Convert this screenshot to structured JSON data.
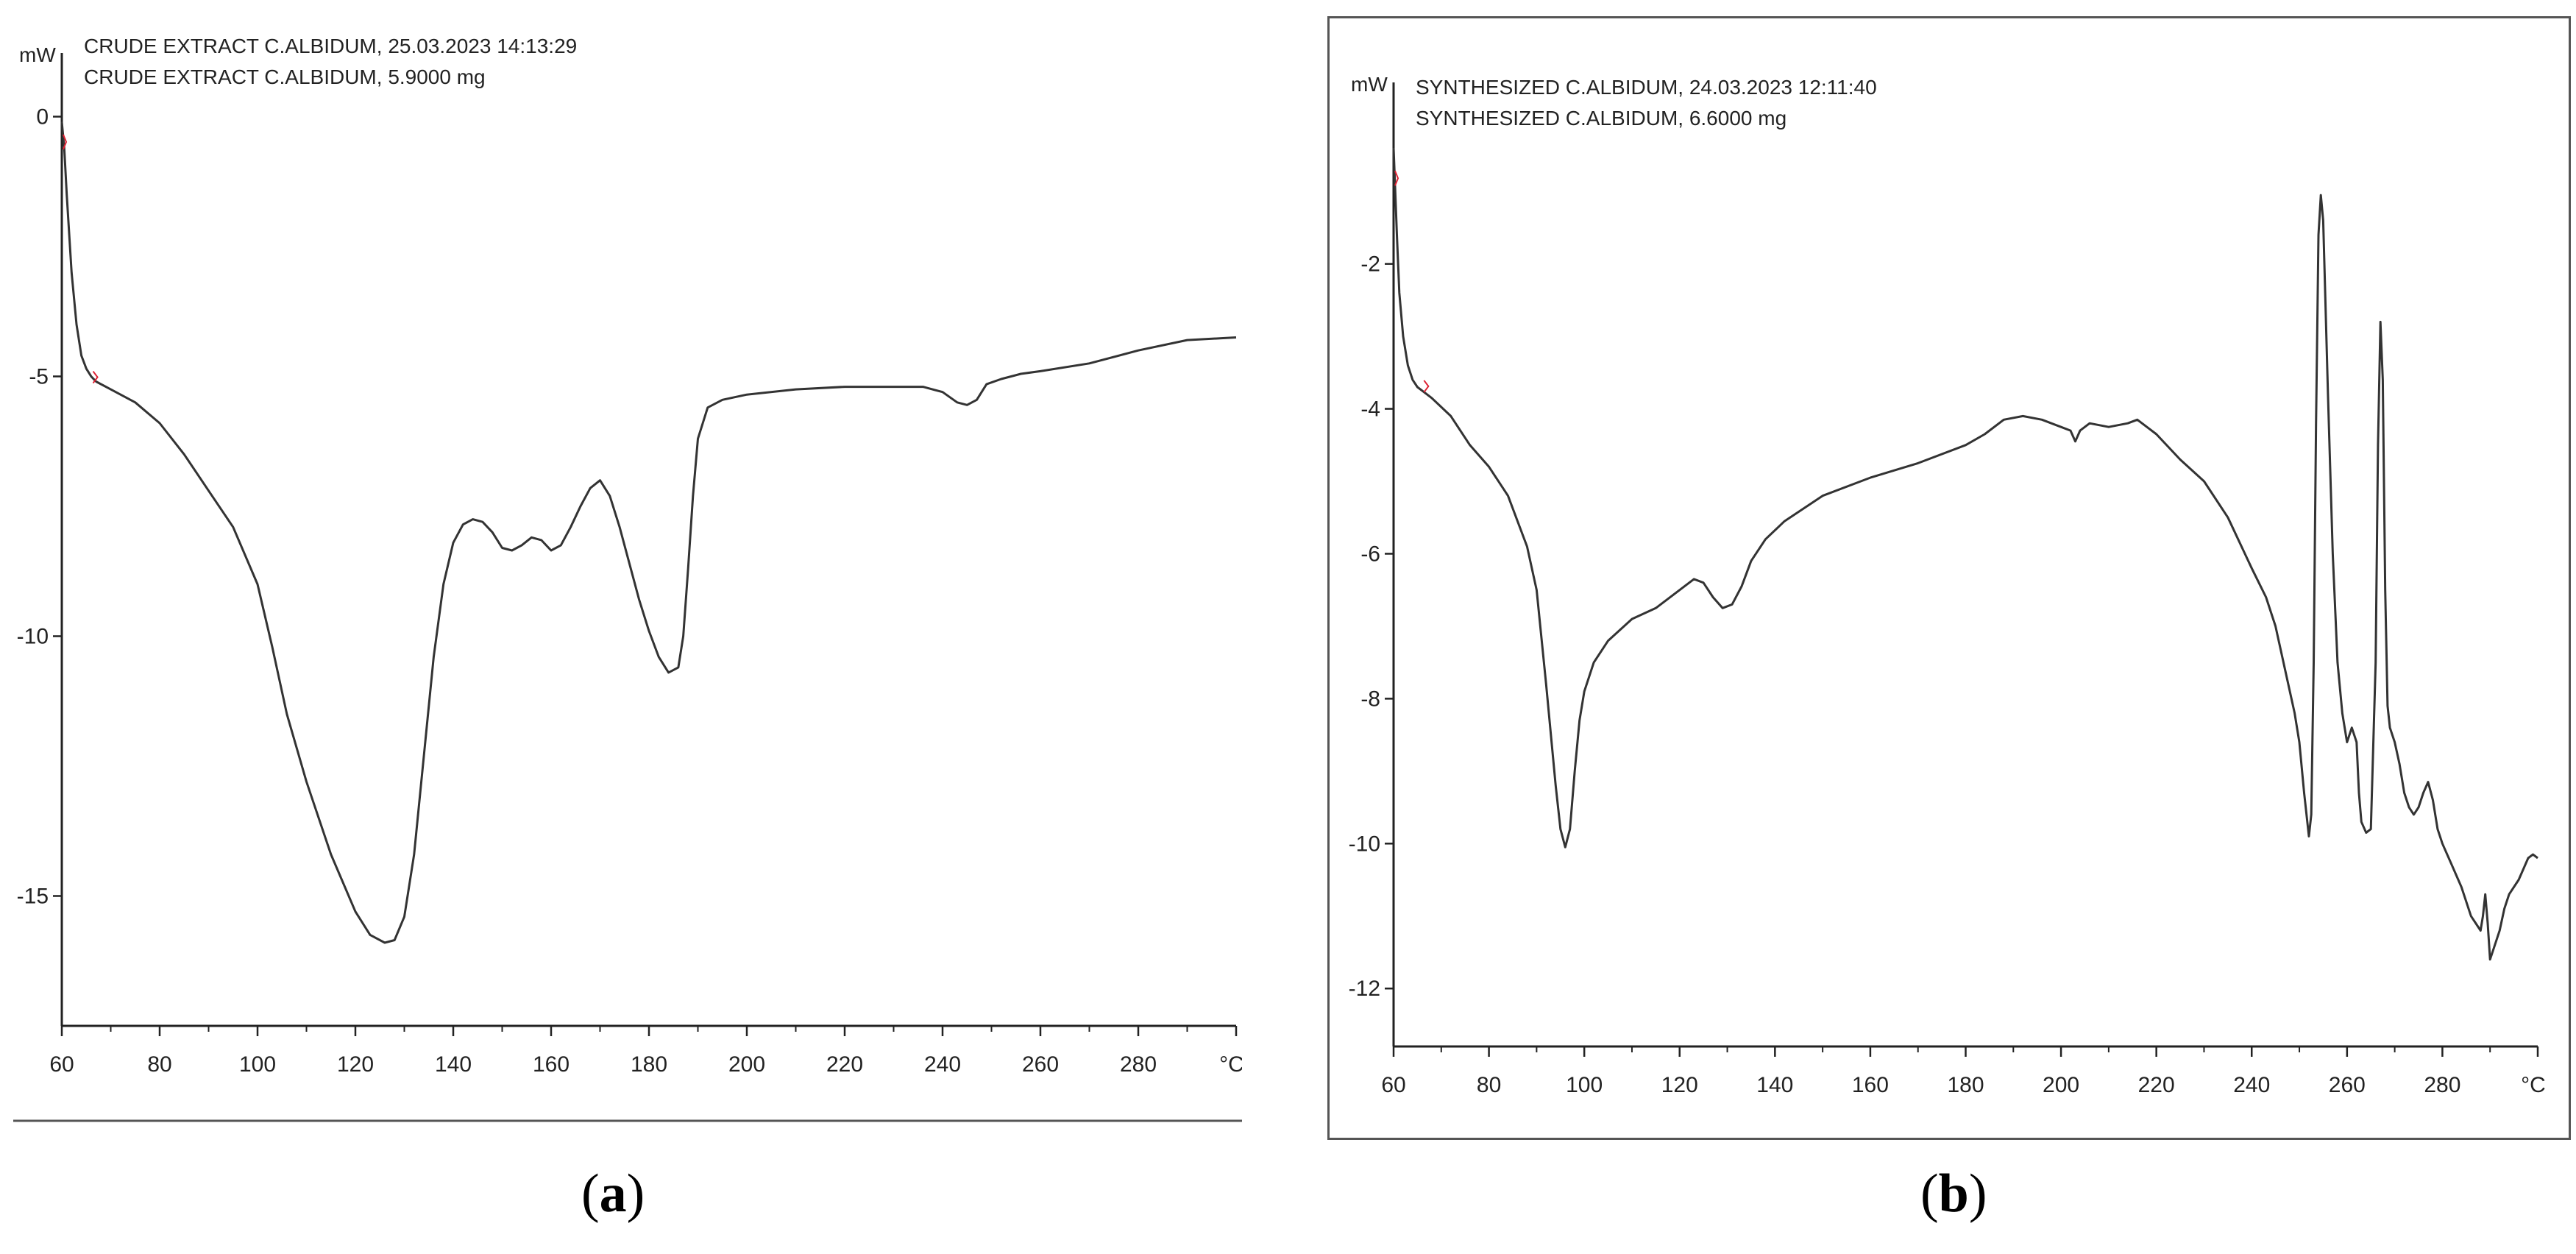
{
  "chart_data": [
    {
      "type": "line",
      "caption_letter": "a",
      "unit_y": "mW",
      "unit_x": "°C",
      "header_lines": [
        "CRUDE EXTRACT C.ALBIDUM, 25.03.2023 14:13:29",
        "CRUDE EXTRACT C.ALBIDUM, 5.9000 mg"
      ],
      "xlim": [
        60,
        300
      ],
      "ylim": [
        -17.5,
        0.8
      ],
      "x_ticks": [
        60,
        80,
        100,
        120,
        140,
        160,
        180,
        200,
        220,
        240,
        260,
        280
      ],
      "y_ticks": [
        0,
        -5,
        -10,
        -15
      ],
      "series": [
        {
          "color": "#333333",
          "x": [
            60,
            60.5,
            61,
            62,
            63,
            64,
            65,
            66,
            67,
            70,
            75,
            80,
            85,
            90,
            95,
            100,
            103,
            106,
            110,
            115,
            120,
            123,
            126,
            128,
            130,
            132,
            134,
            136,
            138,
            140,
            142,
            144,
            146,
            148,
            150,
            152,
            154,
            156,
            158,
            160,
            162,
            164,
            166,
            168,
            170,
            172,
            174,
            176,
            178,
            180,
            182,
            184,
            186,
            187,
            188,
            189,
            190,
            192,
            195,
            200,
            210,
            220,
            230,
            236,
            240,
            243,
            245,
            247,
            249,
            252,
            256,
            260,
            270,
            280,
            290,
            300
          ],
          "y": [
            -0.1,
            -0.6,
            -1.5,
            -3.0,
            -4.0,
            -4.6,
            -4.85,
            -5.0,
            -5.1,
            -5.25,
            -5.5,
            -5.9,
            -6.5,
            -7.2,
            -7.9,
            -9.0,
            -10.2,
            -11.5,
            -12.8,
            -14.2,
            -15.3,
            -15.75,
            -15.9,
            -15.85,
            -15.4,
            -14.2,
            -12.3,
            -10.4,
            -9.0,
            -8.2,
            -7.85,
            -7.75,
            -7.8,
            -8.0,
            -8.3,
            -8.35,
            -8.25,
            -8.1,
            -8.15,
            -8.35,
            -8.25,
            -7.9,
            -7.5,
            -7.15,
            -7.0,
            -7.3,
            -7.9,
            -8.6,
            -9.3,
            -9.9,
            -10.4,
            -10.7,
            -10.6,
            -10.0,
            -8.7,
            -7.3,
            -6.2,
            -5.6,
            -5.45,
            -5.35,
            -5.25,
            -5.2,
            -5.2,
            -5.2,
            -5.3,
            -5.5,
            -5.55,
            -5.45,
            -5.15,
            -5.05,
            -4.95,
            -4.9,
            -4.75,
            -4.5,
            -4.3,
            -4.25
          ]
        }
      ]
    },
    {
      "type": "line",
      "caption_letter": "b",
      "unit_y": "mW",
      "unit_x": "°C",
      "header_lines": [
        "SYNTHESIZED C.ALBIDUM, 24.03.2023 12:11:40",
        "SYNTHESIZED C.ALBIDUM, 6.6000 mg"
      ],
      "xlim": [
        60,
        300
      ],
      "ylim": [
        -12.8,
        0.2
      ],
      "x_ticks": [
        60,
        80,
        100,
        120,
        140,
        160,
        180,
        200,
        220,
        240,
        260,
        280
      ],
      "y_ticks": [
        -2,
        -4,
        -6,
        -8,
        -10,
        -12
      ],
      "series": [
        {
          "color": "#333333",
          "x": [
            60,
            60.3,
            60.7,
            61.2,
            62,
            63,
            64,
            65,
            66,
            68,
            72,
            76,
            80,
            84,
            88,
            90,
            92,
            94,
            95,
            96,
            97,
            98,
            99,
            100,
            102,
            105,
            110,
            115,
            120,
            123,
            125,
            127,
            129,
            131,
            133,
            135,
            138,
            142,
            150,
            160,
            170,
            180,
            184,
            188,
            192,
            196,
            200,
            202,
            203,
            204,
            206,
            210,
            214,
            216,
            220,
            225,
            230,
            235,
            240,
            243,
            245,
            247,
            249,
            250,
            251,
            252,
            252.5,
            253,
            253.5,
            254,
            254.5,
            255,
            256,
            257,
            258,
            259,
            260,
            261,
            262,
            262.5,
            263,
            264,
            265,
            266,
            266.5,
            267,
            267.5,
            268,
            268.5,
            269,
            270,
            271,
            272,
            273,
            274,
            275,
            276,
            277,
            278,
            279,
            280,
            282,
            284,
            286,
            288,
            288.5,
            289,
            289.5,
            290,
            291,
            292,
            293,
            294,
            296,
            298,
            299,
            300
          ],
          "y": [
            -0.4,
            -0.9,
            -1.6,
            -2.4,
            -3.0,
            -3.4,
            -3.6,
            -3.7,
            -3.75,
            -3.85,
            -4.1,
            -4.5,
            -4.8,
            -5.2,
            -5.9,
            -6.5,
            -7.8,
            -9.2,
            -9.8,
            -10.05,
            -9.8,
            -9.0,
            -8.3,
            -7.9,
            -7.5,
            -7.2,
            -6.9,
            -6.75,
            -6.5,
            -6.35,
            -6.4,
            -6.6,
            -6.75,
            -6.7,
            -6.45,
            -6.1,
            -5.8,
            -5.55,
            -5.2,
            -4.95,
            -4.75,
            -4.5,
            -4.35,
            -4.15,
            -4.1,
            -4.15,
            -4.25,
            -4.3,
            -4.45,
            -4.3,
            -4.2,
            -4.25,
            -4.2,
            -4.15,
            -4.35,
            -4.7,
            -5.0,
            -5.5,
            -6.2,
            -6.6,
            -7.0,
            -7.6,
            -8.2,
            -8.6,
            -9.3,
            -9.9,
            -9.6,
            -7.5,
            -4.2,
            -1.6,
            -1.05,
            -1.4,
            -3.8,
            -6.0,
            -7.5,
            -8.2,
            -8.6,
            -8.4,
            -8.6,
            -9.3,
            -9.7,
            -9.85,
            -9.8,
            -7.5,
            -4.5,
            -2.8,
            -3.6,
            -6.5,
            -8.1,
            -8.4,
            -8.6,
            -8.9,
            -9.3,
            -9.5,
            -9.6,
            -9.5,
            -9.3,
            -9.15,
            -9.4,
            -9.8,
            -10.0,
            -10.3,
            -10.6,
            -11.0,
            -11.2,
            -11.0,
            -10.7,
            -11.1,
            -11.6,
            -11.4,
            -11.2,
            -10.9,
            -10.7,
            -10.5,
            -10.2,
            -10.15,
            -10.2
          ]
        }
      ]
    }
  ]
}
